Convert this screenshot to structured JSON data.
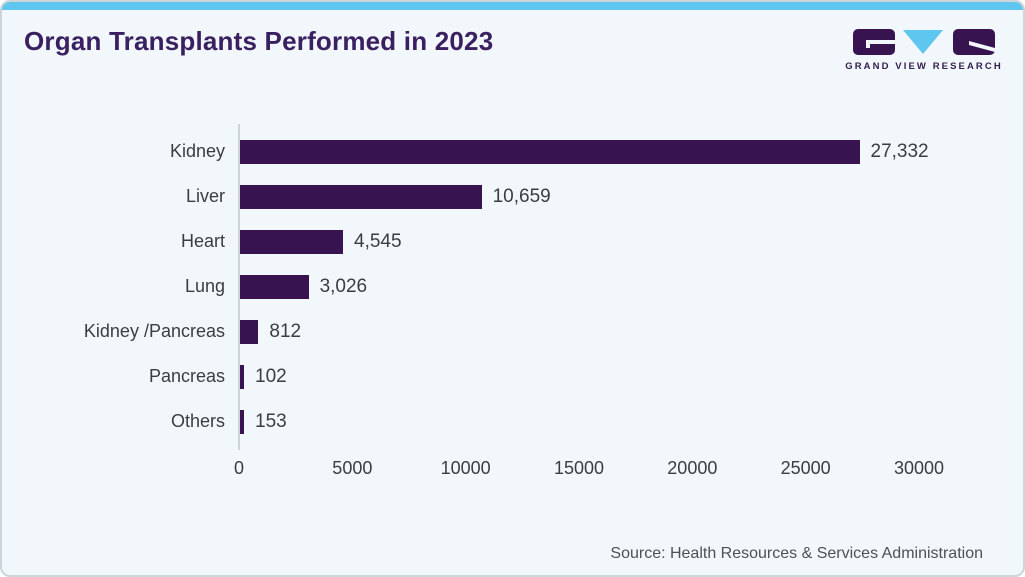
{
  "header": {
    "title": "Organ Transplants Performed in 2023"
  },
  "logo": {
    "brand": "GRAND VIEW RESEARCH",
    "accent_blue": "#5ec6ef",
    "purple": "#371450"
  },
  "chart_data": {
    "type": "bar",
    "orientation": "horizontal",
    "title": "Organ Transplants Performed in 2023",
    "categories": [
      "Kidney",
      "Liver",
      "Heart",
      "Lung",
      "Kidney /Pancreas",
      "Pancreas",
      "Others"
    ],
    "values": [
      27332,
      10659,
      4545,
      3026,
      812,
      102,
      153
    ],
    "value_labels": [
      "27,332",
      "10,659",
      "4,545",
      "3,026",
      "812",
      "102",
      "153"
    ],
    "xlabel": "",
    "ylabel": "",
    "xlim": [
      0,
      30000
    ],
    "x_ticks": [
      0,
      5000,
      10000,
      15000,
      20000,
      25000,
      30000
    ],
    "x_tick_labels": [
      "0",
      "5000",
      "10000",
      "15000",
      "20000",
      "25000",
      "30000"
    ],
    "bar_color": "#371450",
    "grid": false,
    "legend": false
  },
  "footer": {
    "source": "Source: Health Resources & Services Administration"
  }
}
